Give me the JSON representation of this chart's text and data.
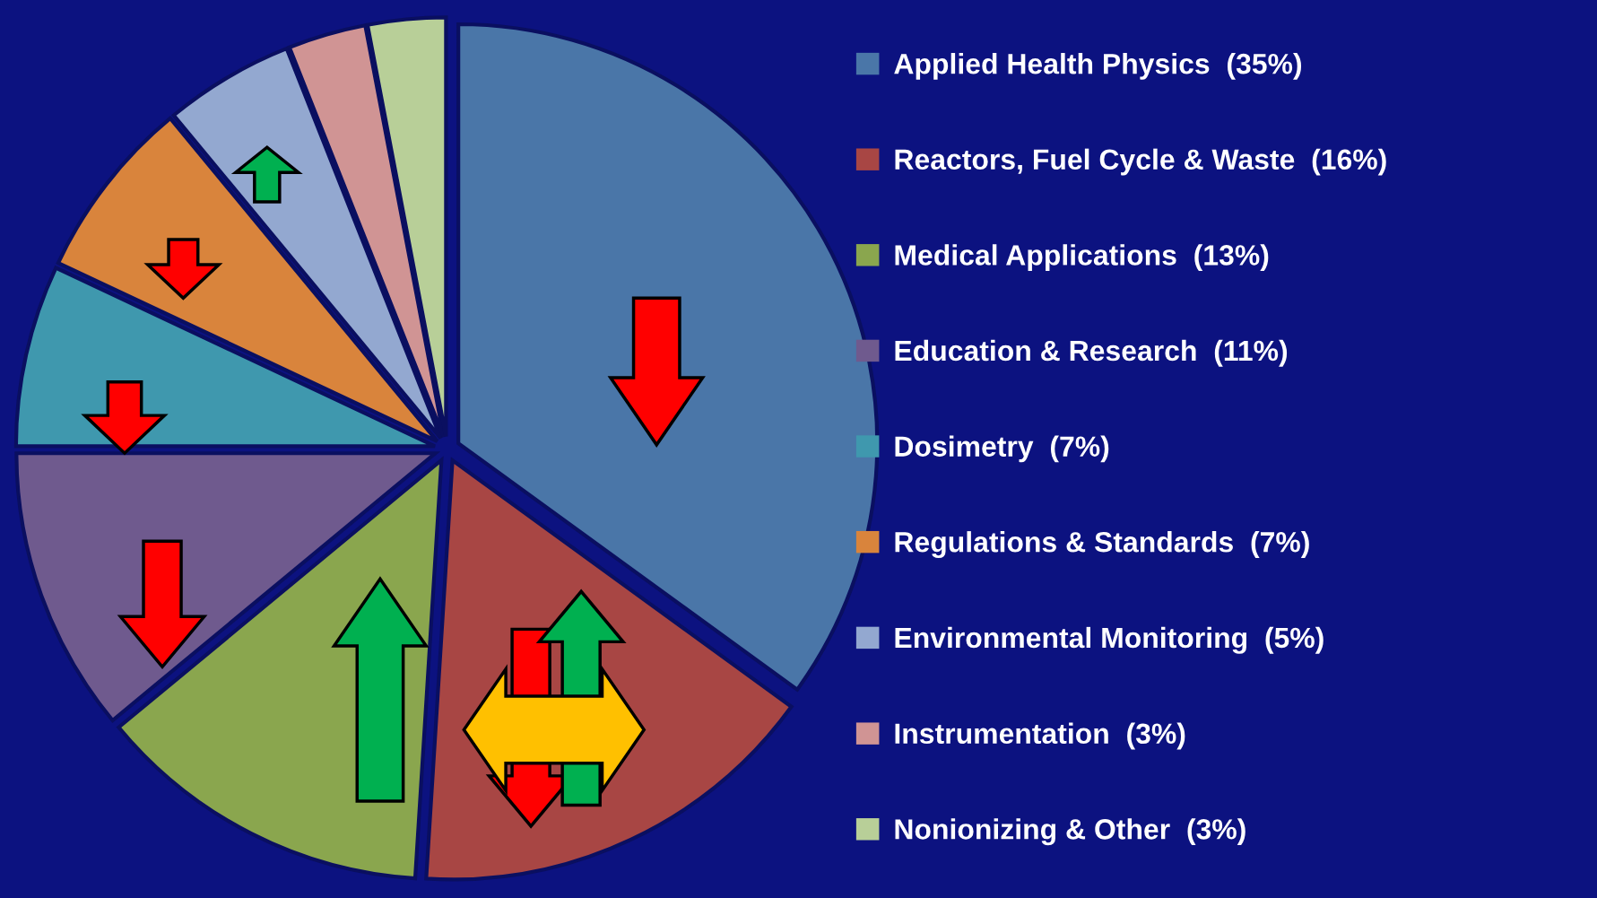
{
  "chart_data": {
    "type": "pie",
    "categories": [
      "Applied Health Physics  (35%)",
      "Reactors, Fuel Cycle & Waste  (16%)",
      "Medical Applications  (13%)",
      "Education & Research  (11%)",
      "Dosimetry  (7%)",
      "Regulations & Standards  (7%)",
      "Environmental Monitoring  (5%)",
      "Instrumentation  (3%)",
      "Nonionizing & Other  (3%)"
    ],
    "values": [
      35,
      16,
      13,
      11,
      7,
      7,
      5,
      3,
      3
    ],
    "colors": [
      "#4a76a8",
      "#a84644",
      "#8aa64e",
      "#6f5a8e",
      "#3f98ae",
      "#d9843c",
      "#93a8d0",
      "#d09494",
      "#b8cf98"
    ],
    "legend": "right"
  }
}
